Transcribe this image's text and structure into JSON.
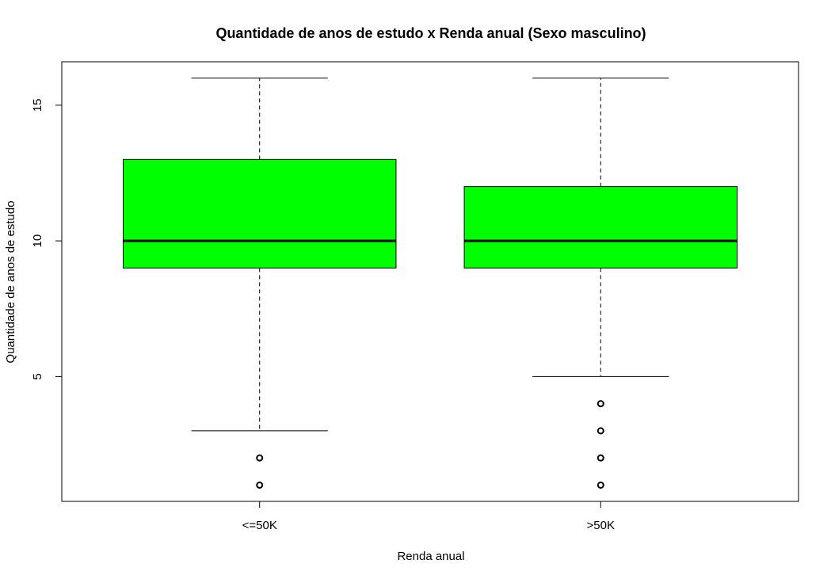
{
  "chart_data": {
    "type": "boxplot",
    "title": "Quantidade de anos de estudo x Renda anual (Sexo masculino)",
    "xlabel": "Renda anual",
    "ylabel": "Quantidade de anos de estudo",
    "categories": [
      "<=50K",
      ">50K"
    ],
    "y_ticks": [
      5,
      10,
      15
    ],
    "ylim": [
      0.4,
      16.6
    ],
    "box_color": "#00FF00",
    "series": [
      {
        "category": "<=50K",
        "min": 3,
        "q1": 9,
        "median": 10,
        "q3": 13,
        "max": 16,
        "outliers": [
          1,
          2
        ]
      },
      {
        "category": ">50K",
        "min": 5,
        "q1": 9,
        "median": 10,
        "q3": 12,
        "max": 16,
        "outliers": [
          1,
          2,
          3,
          4
        ]
      }
    ]
  }
}
